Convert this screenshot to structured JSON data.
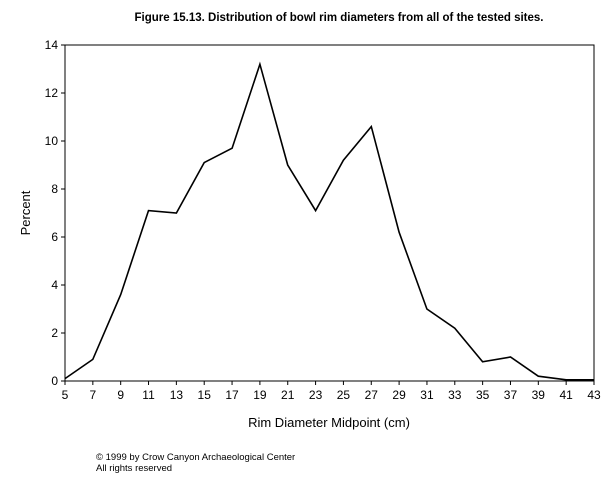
{
  "chart_data": {
    "type": "line",
    "title": "Figure 15.13.  Distribution of bowl rim diameters from all of the tested sites.",
    "xlabel": "Rim Diameter Midpoint (cm)",
    "ylabel": "Percent",
    "xlim": [
      5,
      43
    ],
    "ylim": [
      0,
      14
    ],
    "xticks": [
      5,
      7,
      9,
      11,
      13,
      15,
      17,
      19,
      21,
      23,
      25,
      27,
      29,
      31,
      33,
      35,
      37,
      39,
      41,
      43
    ],
    "yticks": [
      0,
      2,
      4,
      6,
      8,
      10,
      12,
      14
    ],
    "x": [
      5,
      7,
      9,
      11,
      13,
      15,
      17,
      19,
      21,
      23,
      25,
      27,
      29,
      31,
      33,
      35,
      37,
      39,
      41,
      43
    ],
    "series": [
      {
        "values": [
          0.1,
          0.9,
          3.6,
          7.1,
          7.0,
          9.1,
          9.7,
          13.2,
          9.0,
          7.1,
          9.2,
          10.6,
          6.2,
          3.0,
          2.2,
          0.8,
          1.0,
          0.2,
          0.05,
          0.05
        ]
      }
    ],
    "grid": false,
    "line_color": "#000000"
  },
  "footer": {
    "copyright": "© 1999 by Crow Canyon Archaeological Center",
    "rights": "All rights reserved"
  }
}
